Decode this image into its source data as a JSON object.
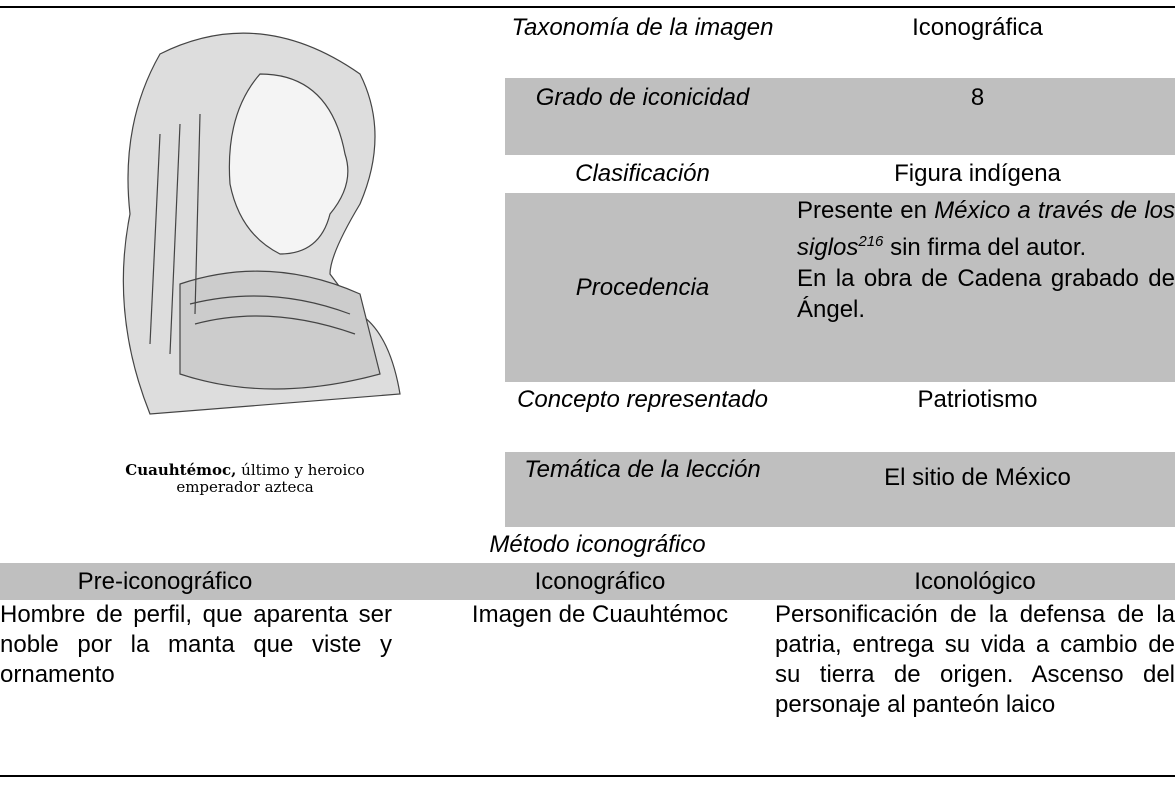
{
  "image": {
    "caption_name": "Cuauhtémoc,",
    "caption_rest": "último y heroico",
    "caption_line2": "emperador azteca"
  },
  "info_rows": [
    {
      "label": "Taxonomía de la imagen",
      "value": "Iconográfica"
    },
    {
      "label": "Grado de iconicidad",
      "value": "8"
    },
    {
      "label": "Clasificación",
      "value": "Figura indígena"
    },
    {
      "label": "Procedencia",
      "value_parts": [
        "Presente en",
        "México a través de los siglos",
        "216",
        "sin firma del autor.",
        "En la obra de Cadena grabado de Ángel."
      ]
    },
    {
      "label": "Concepto representado",
      "value": "Patriotismo"
    },
    {
      "label": "Temática de la lección",
      "value": "El sitio de México"
    }
  ],
  "method": {
    "title": "Método iconográfico",
    "headers": [
      "Pre-iconográfico",
      "Iconográfico",
      "Iconológico"
    ],
    "cells": [
      "Hombre de perfil, que aparenta ser noble por la manta que viste y ornamento",
      "Imagen de Cuauhtémoc",
      "Personificación de la defensa de la patria, entrega su vida a cambio de su tierra de origen. Ascenso del personaje al panteón laico"
    ]
  }
}
